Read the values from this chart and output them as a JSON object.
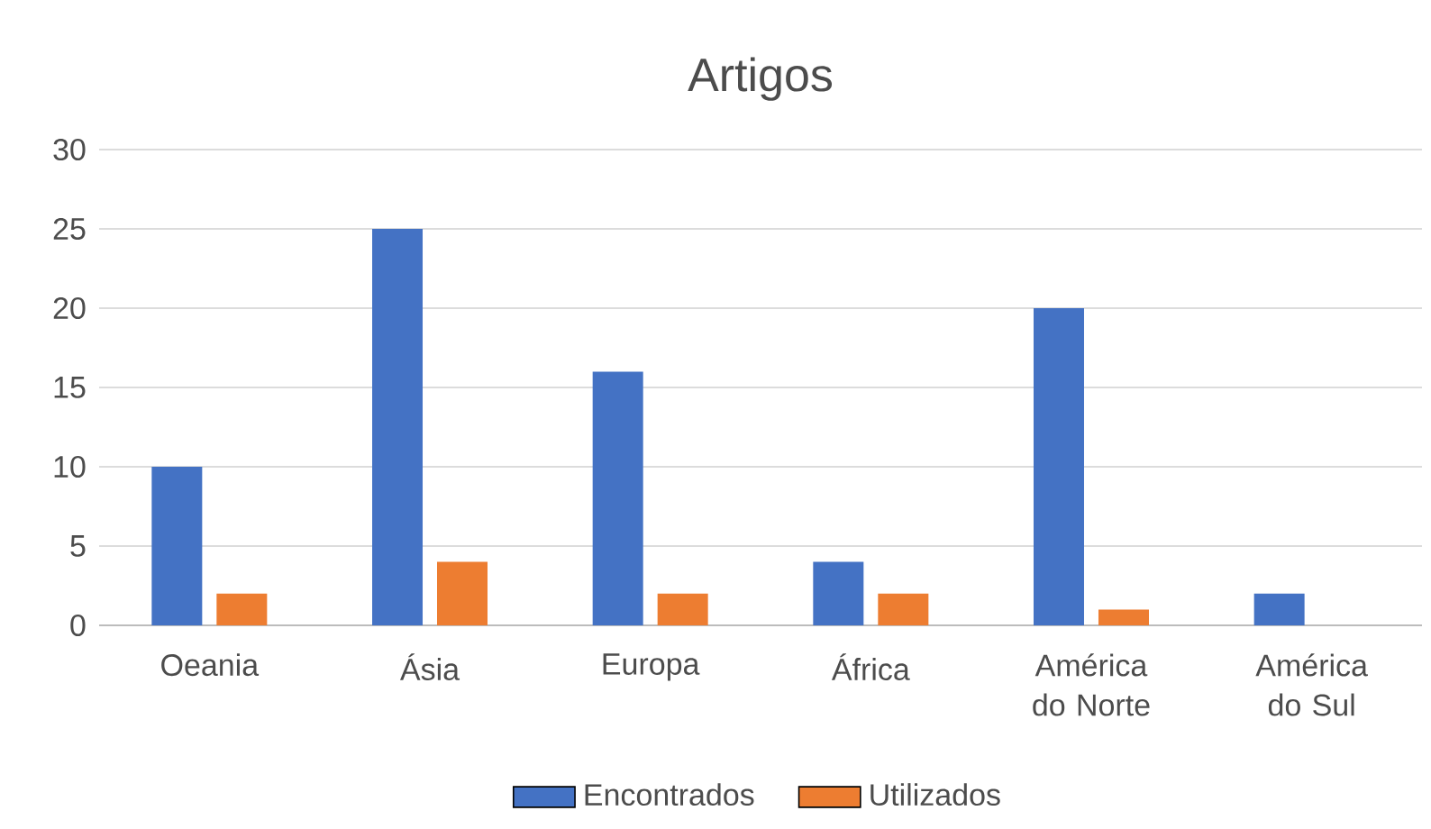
{
  "chart_data": {
    "type": "bar",
    "title": "Artigos",
    "categories": [
      "Oeania",
      "Ásia",
      "Europa",
      "África",
      "América do Norte",
      "América do Sul"
    ],
    "series": [
      {
        "name": "Encontrados",
        "color": "#4472c4",
        "values": [
          10,
          25,
          16,
          4,
          20,
          2
        ]
      },
      {
        "name": "Utilizados",
        "color": "#ed7d31",
        "values": [
          2,
          4,
          2,
          2,
          1,
          0
        ]
      }
    ],
    "ylim": [
      0,
      30
    ],
    "yticks": [
      0,
      5,
      10,
      15,
      20,
      25,
      30
    ],
    "grid": "y",
    "legend": "bottom"
  }
}
